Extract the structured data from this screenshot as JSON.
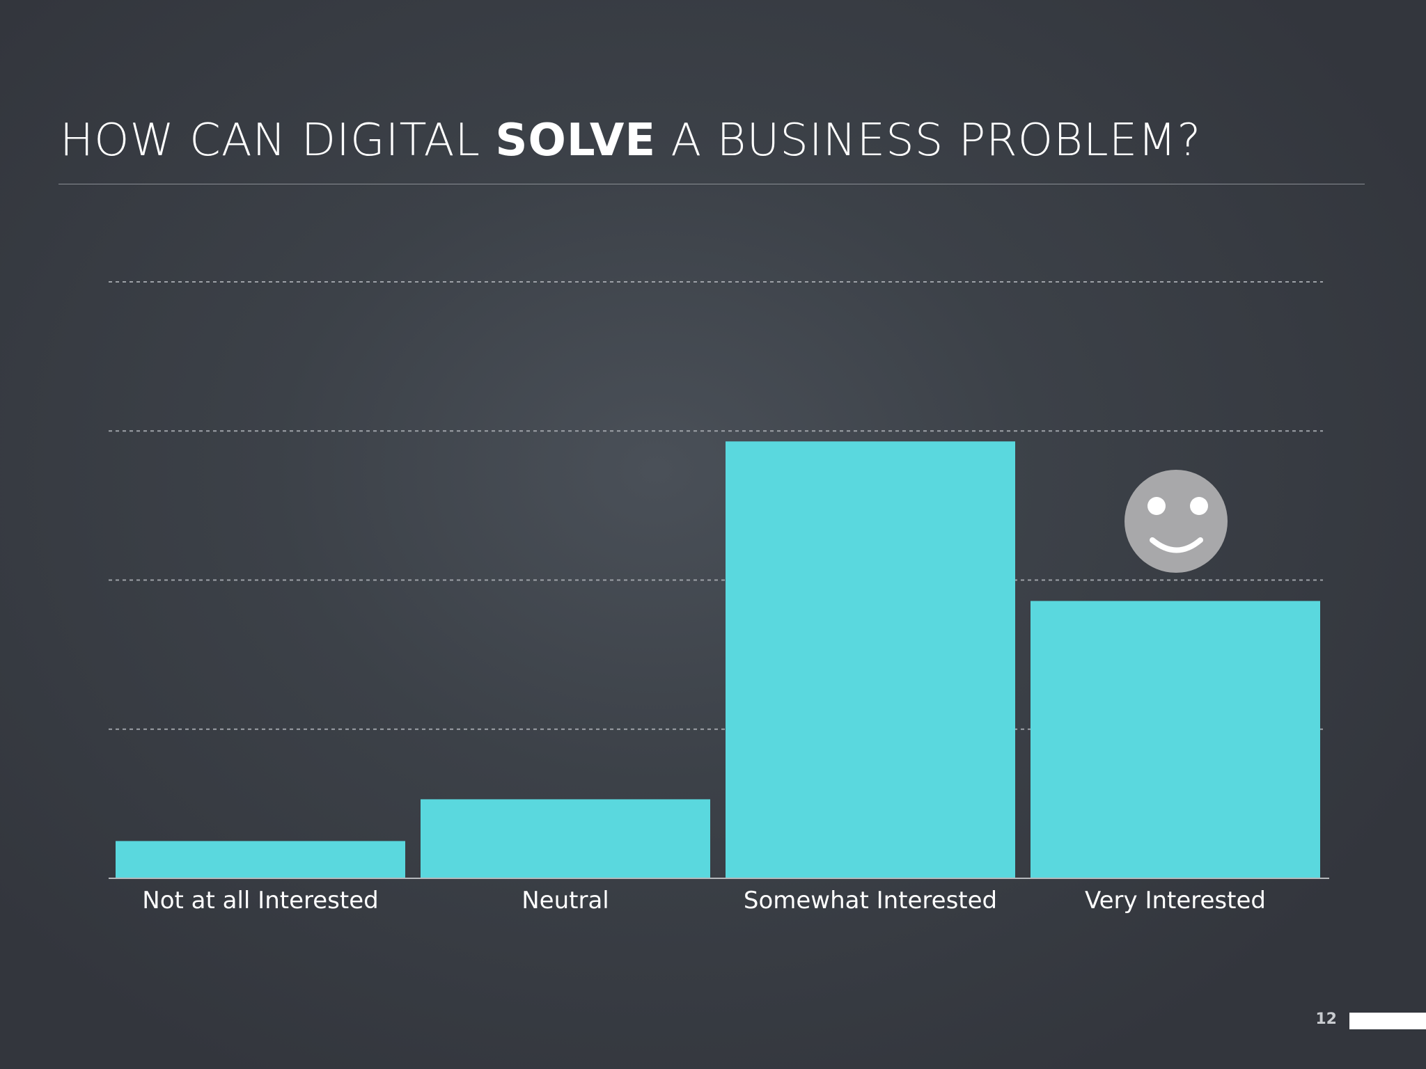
{
  "slide": {
    "title_pre": "HOW CAN DIGITAL ",
    "title_bold": "SOLVE",
    "title_post": " A BUSINESS PROBLEM?",
    "page_number": "12"
  },
  "chart_data": {
    "type": "bar",
    "categories": [
      "Not at all Interested",
      "Neutral",
      "Somewhat Interested",
      "Very Interested"
    ],
    "values": [
      5,
      10.6,
      58.6,
      37.2
    ],
    "ylim": [
      0,
      80
    ],
    "grid": true,
    "gridline_values": [
      20,
      40,
      60,
      80
    ],
    "bar_color": "#5ad8de",
    "highlight": {
      "category": "Very Interested",
      "icon": "smiley-face-icon",
      "color": "#a8a8aa"
    }
  }
}
